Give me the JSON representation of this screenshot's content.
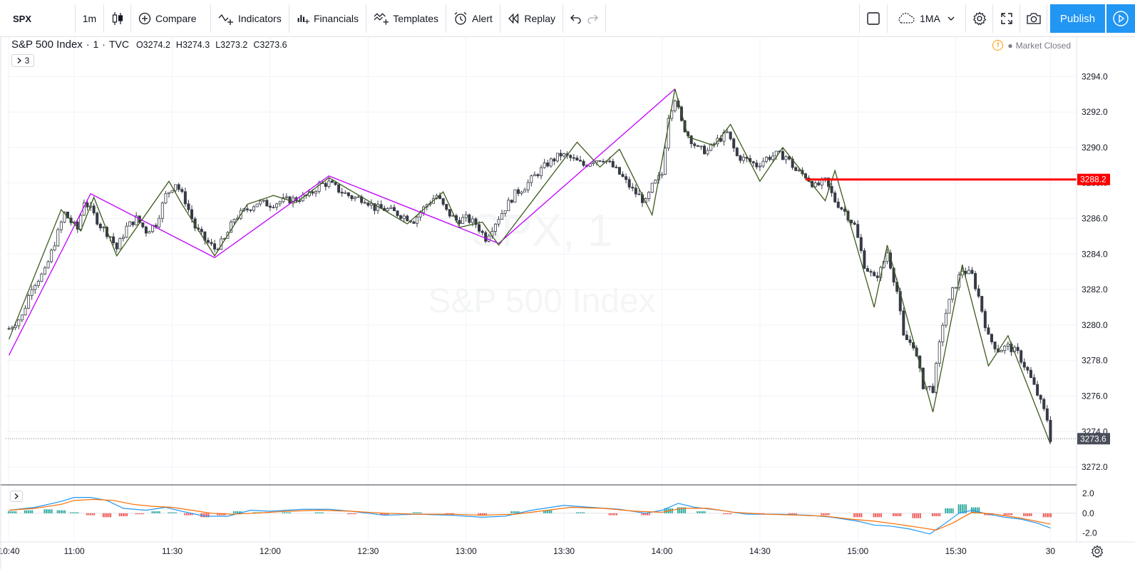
{
  "toolbar": {
    "symbol": "SPX",
    "interval": "1m",
    "compare_label": "Compare",
    "indicators_label": "Indicators",
    "financials_label": "Financials",
    "templates_label": "Templates",
    "alert_label": "Alert",
    "replay_label": "Replay",
    "ma_label": "1MA",
    "publish_label": "Publish"
  },
  "legend": {
    "name": "S&P 500 Index",
    "interval": "1",
    "exchange": "TVC",
    "separator": "·",
    "open": "O3274.2",
    "high": "H3274.3",
    "low": "L3273.2",
    "close": "C3273.6",
    "collapsed_count": "3"
  },
  "status": {
    "market": "Market Closed"
  },
  "watermark": {
    "symbol": "SPX, 1",
    "name": "S&P 500 Index"
  },
  "colors": {
    "candle_up": "#ffffff",
    "candle_down": "#363a45",
    "zigzag_major": "#c300ff",
    "zigzag_minor": "#3d5a1e",
    "level_line": "#ff0000",
    "accent": "#2196f3",
    "macd_line": "#2196f3",
    "signal_line": "#ff6d00",
    "hist_up": "#26a69a",
    "hist_down": "#ef5350"
  },
  "chart_data": [
    {
      "type": "candlestick",
      "title": "S&P 500 Index · 1 · TVC",
      "x_ticks": [
        "10:40",
        "11:00",
        "11:30",
        "12:00",
        "12:30",
        "13:00",
        "13:30",
        "14:00",
        "14:30",
        "15:00",
        "15:30",
        "30"
      ],
      "y_ticks": [
        3272.0,
        3274.0,
        3276.0,
        3278.0,
        3280.0,
        3282.0,
        3284.0,
        3286.0,
        3288.0,
        3290.0,
        3292.0,
        3294.0
      ],
      "ylim": [
        3271.0,
        3296.3
      ],
      "x_range": [
        "10:40",
        "15:59"
      ],
      "last_price": "3273.6",
      "level_price": "3288.2",
      "level_start": "14:44",
      "grid": true,
      "close_path": [
        [
          "10:40",
          3279.8
        ],
        [
          "10:44",
          3280.5
        ],
        [
          "10:47",
          3282.2
        ],
        [
          "10:51",
          3283.0
        ],
        [
          "10:55",
          3285.2
        ],
        [
          "10:57",
          3286.3
        ],
        [
          "10:59",
          3285.8
        ],
        [
          "11:01",
          3285.4
        ],
        [
          "11:03",
          3287.0
        ],
        [
          "11:05",
          3286.5
        ],
        [
          "11:08",
          3285.6
        ],
        [
          "11:11",
          3285.0
        ],
        [
          "11:13",
          3284.3
        ],
        [
          "11:16",
          3285.5
        ],
        [
          "11:19",
          3286.0
        ],
        [
          "11:22",
          3285.3
        ],
        [
          "11:25",
          3285.7
        ],
        [
          "11:28",
          3287.3
        ],
        [
          "11:31",
          3288.0
        ],
        [
          "11:34",
          3287.0
        ],
        [
          "11:37",
          3285.5
        ],
        [
          "11:40",
          3284.8
        ],
        [
          "11:43",
          3284.3
        ],
        [
          "11:46",
          3284.8
        ],
        [
          "11:49",
          3286.0
        ],
        [
          "11:52",
          3286.4
        ],
        [
          "11:56",
          3286.9
        ],
        [
          "12:00",
          3286.8
        ],
        [
          "12:04",
          3287.0
        ],
        [
          "12:08",
          3287.1
        ],
        [
          "12:12",
          3287.3
        ],
        [
          "12:15",
          3287.9
        ],
        [
          "12:18",
          3288.0
        ],
        [
          "12:21",
          3287.6
        ],
        [
          "12:25",
          3287.2
        ],
        [
          "12:29",
          3287.1
        ],
        [
          "12:32",
          3286.6
        ],
        [
          "12:36",
          3286.5
        ],
        [
          "12:40",
          3286.2
        ],
        [
          "12:44",
          3285.9
        ],
        [
          "12:48",
          3286.8
        ],
        [
          "12:51",
          3287.3
        ],
        [
          "12:54",
          3286.4
        ],
        [
          "12:57",
          3285.9
        ],
        [
          "13:00",
          3286.0
        ],
        [
          "13:03",
          3285.7
        ],
        [
          "13:06",
          3284.9
        ],
        [
          "13:09",
          3285.8
        ],
        [
          "13:12",
          3286.6
        ],
        [
          "13:15",
          3287.4
        ],
        [
          "13:18",
          3287.8
        ],
        [
          "13:21",
          3288.4
        ],
        [
          "13:25",
          3289.1
        ],
        [
          "13:29",
          3289.6
        ],
        [
          "13:32",
          3289.4
        ],
        [
          "13:36",
          3289.0
        ],
        [
          "13:39",
          3289.3
        ],
        [
          "13:42",
          3289.4
        ],
        [
          "13:45",
          3288.9
        ],
        [
          "13:48",
          3288.3
        ],
        [
          "13:51",
          3287.6
        ],
        [
          "13:55",
          3286.9
        ],
        [
          "13:57",
          3287.8
        ],
        [
          "14:00",
          3288.5
        ],
        [
          "14:02",
          3291.8
        ],
        [
          "14:04",
          3292.8
        ],
        [
          "14:06",
          3291.4
        ],
        [
          "14:08",
          3290.7
        ],
        [
          "14:11",
          3289.9
        ],
        [
          "14:14",
          3289.8
        ],
        [
          "14:17",
          3290.4
        ],
        [
          "14:20",
          3290.8
        ],
        [
          "14:23",
          3289.5
        ],
        [
          "14:26",
          3289.3
        ],
        [
          "14:29",
          3289.0
        ],
        [
          "14:32",
          3289.4
        ],
        [
          "14:35",
          3289.6
        ],
        [
          "14:38",
          3289.5
        ],
        [
          "14:41",
          3288.7
        ],
        [
          "14:44",
          3288.4
        ],
        [
          "14:47",
          3287.8
        ],
        [
          "14:50",
          3288.1
        ],
        [
          "14:53",
          3287.0
        ],
        [
          "14:56",
          3286.4
        ],
        [
          "14:59",
          3285.6
        ],
        [
          "15:02",
          3283.4
        ],
        [
          "15:05",
          3282.6
        ],
        [
          "15:07",
          3283.1
        ],
        [
          "15:09",
          3284.1
        ],
        [
          "15:12",
          3281.9
        ],
        [
          "15:14",
          3279.3
        ],
        [
          "15:17",
          3278.9
        ],
        [
          "15:20",
          3276.6
        ],
        [
          "15:23",
          3276.4
        ],
        [
          "15:26",
          3280.1
        ],
        [
          "15:29",
          3281.9
        ],
        [
          "15:32",
          3283.1
        ],
        [
          "15:35",
          3282.8
        ],
        [
          "15:37",
          3281.6
        ],
        [
          "15:40",
          3279.3
        ],
        [
          "15:43",
          3278.6
        ],
        [
          "15:46",
          3278.8
        ],
        [
          "15:49",
          3278.4
        ],
        [
          "15:52",
          3277.4
        ],
        [
          "15:55",
          3276.1
        ],
        [
          "15:58",
          3274.7
        ],
        [
          "15:59",
          3273.6
        ]
      ],
      "zigzag_major": [
        [
          "10:40",
          3278.3
        ],
        [
          "11:05",
          3287.4
        ],
        [
          "11:43",
          3283.8
        ],
        [
          "12:18",
          3288.4
        ],
        [
          "13:10",
          3284.6
        ],
        [
          "14:04",
          3293.3
        ]
      ],
      "zigzag_minor": [
        [
          "10:40",
          3279.2
        ],
        [
          "10:56",
          3286.5
        ],
        [
          "11:02",
          3285.3
        ],
        [
          "11:06",
          3287.2
        ],
        [
          "11:13",
          3283.9
        ],
        [
          "11:29",
          3288.1
        ],
        [
          "11:33",
          3286.8
        ],
        [
          "11:43",
          3283.9
        ],
        [
          "11:53",
          3286.8
        ],
        [
          "12:01",
          3287.3
        ],
        [
          "12:08",
          3286.9
        ],
        [
          "12:18",
          3288.3
        ],
        [
          "12:42",
          3285.7
        ],
        [
          "12:53",
          3287.5
        ],
        [
          "12:58",
          3285.5
        ],
        [
          "13:05",
          3285.8
        ],
        [
          "13:10",
          3284.5
        ],
        [
          "13:34",
          3290.3
        ],
        [
          "13:41",
          3288.9
        ],
        [
          "13:47",
          3289.9
        ],
        [
          "13:57",
          3286.2
        ],
        [
          "14:04",
          3293.3
        ],
        [
          "14:08",
          3290.6
        ],
        [
          "14:16",
          3290.1
        ],
        [
          "14:21",
          3291.3
        ],
        [
          "14:30",
          3288.1
        ],
        [
          "14:37",
          3290.0
        ],
        [
          "14:50",
          3287.0
        ],
        [
          "14:53",
          3288.7
        ],
        [
          "15:05",
          3281.0
        ],
        [
          "15:09",
          3284.5
        ],
        [
          "15:23",
          3275.1
        ],
        [
          "15:32",
          3283.4
        ],
        [
          "15:40",
          3277.7
        ],
        [
          "15:46",
          3279.4
        ],
        [
          "15:59",
          3273.3
        ]
      ]
    },
    {
      "type": "line",
      "title": "",
      "y_ticks": [
        2.0,
        0.0,
        -2.0
      ],
      "ylim": [
        -2.9,
        2.8
      ],
      "series": [
        {
          "values": [
            [
              "10:40",
              0.3
            ],
            [
              "10:48",
              0.6
            ],
            [
              "10:56",
              1.2
            ],
            [
              "11:00",
              1.6
            ],
            [
              "11:05",
              1.6
            ],
            [
              "11:10",
              1.3
            ],
            [
              "11:15",
              0.5
            ],
            [
              "11:22",
              0.3
            ],
            [
              "11:28",
              0.6
            ],
            [
              "11:33",
              0.2
            ],
            [
              "11:40",
              -0.3
            ],
            [
              "11:47",
              -0.3
            ],
            [
              "11:54",
              0.3
            ],
            [
              "12:00",
              0.2
            ],
            [
              "12:10",
              0.4
            ],
            [
              "12:18",
              0.4
            ],
            [
              "12:25",
              0.2
            ],
            [
              "12:35",
              -0.2
            ],
            [
              "12:45",
              -0.1
            ],
            [
              "12:55",
              -0.2
            ],
            [
              "13:05",
              -0.4
            ],
            [
              "13:12",
              -0.3
            ],
            [
              "13:20",
              0.3
            ],
            [
              "13:30",
              0.8
            ],
            [
              "13:38",
              0.6
            ],
            [
              "13:47",
              0.4
            ],
            [
              "13:55",
              0.0
            ],
            [
              "14:00",
              0.3
            ],
            [
              "14:05",
              1.0
            ],
            [
              "14:10",
              0.6
            ],
            [
              "14:18",
              0.3
            ],
            [
              "14:26",
              -0.1
            ],
            [
              "14:36",
              -0.1
            ],
            [
              "14:45",
              -0.2
            ],
            [
              "14:52",
              -0.4
            ],
            [
              "15:00",
              -0.8
            ],
            [
              "15:05",
              -1.2
            ],
            [
              "15:10",
              -1.3
            ],
            [
              "15:16",
              -1.6
            ],
            [
              "15:22",
              -2.1
            ],
            [
              "15:26",
              -1.2
            ],
            [
              "15:31",
              0.0
            ],
            [
              "15:35",
              0.3
            ],
            [
              "15:40",
              -0.1
            ],
            [
              "15:45",
              -0.4
            ],
            [
              "15:50",
              -0.6
            ],
            [
              "15:55",
              -1.0
            ],
            [
              "15:59",
              -1.5
            ]
          ]
        },
        {
          "values": [
            [
              "10:40",
              0.3
            ],
            [
              "10:48",
              0.5
            ],
            [
              "10:56",
              0.9
            ],
            [
              "11:00",
              1.3
            ],
            [
              "11:06",
              1.4
            ],
            [
              "11:12",
              1.3
            ],
            [
              "11:18",
              0.9
            ],
            [
              "11:24",
              0.7
            ],
            [
              "11:30",
              0.6
            ],
            [
              "11:36",
              0.3
            ],
            [
              "11:42",
              0.0
            ],
            [
              "11:48",
              -0.1
            ],
            [
              "11:55",
              0.0
            ],
            [
              "12:05",
              0.2
            ],
            [
              "12:15",
              0.3
            ],
            [
              "12:25",
              0.2
            ],
            [
              "12:35",
              0.0
            ],
            [
              "12:45",
              -0.1
            ],
            [
              "12:55",
              -0.1
            ],
            [
              "13:05",
              -0.2
            ],
            [
              "13:15",
              -0.1
            ],
            [
              "13:25",
              0.3
            ],
            [
              "13:32",
              0.6
            ],
            [
              "13:42",
              0.5
            ],
            [
              "13:52",
              0.2
            ],
            [
              "14:00",
              0.1
            ],
            [
              "14:06",
              0.5
            ],
            [
              "14:14",
              0.5
            ],
            [
              "14:22",
              0.1
            ],
            [
              "14:32",
              -0.1
            ],
            [
              "14:42",
              -0.2
            ],
            [
              "14:50",
              -0.3
            ],
            [
              "14:58",
              -0.6
            ],
            [
              "15:05",
              -0.8
            ],
            [
              "15:12",
              -1.1
            ],
            [
              "15:18",
              -1.4
            ],
            [
              "15:24",
              -1.7
            ],
            [
              "15:29",
              -1.0
            ],
            [
              "15:35",
              0.1
            ],
            [
              "15:42",
              -0.1
            ],
            [
              "15:50",
              -0.5
            ],
            [
              "15:59",
              -1.1
            ]
          ]
        }
      ],
      "histogram": [
        [
          "10:41",
          0.2
        ],
        [
          "10:46",
          0.3
        ],
        [
          "10:52",
          0.4
        ],
        [
          "10:56",
          0.3
        ],
        [
          "11:00",
          0.1
        ],
        [
          "11:05",
          -0.2
        ],
        [
          "11:10",
          -0.4
        ],
        [
          "11:15",
          -0.3
        ],
        [
          "11:20",
          -0.1
        ],
        [
          "11:25",
          0.2
        ],
        [
          "11:30",
          0.1
        ],
        [
          "11:35",
          -0.2
        ],
        [
          "11:40",
          -0.4
        ],
        [
          "11:45",
          -0.2
        ],
        [
          "11:50",
          0.2
        ],
        [
          "11:56",
          0.1
        ],
        [
          "12:05",
          0.1
        ],
        [
          "12:15",
          0.1
        ],
        [
          "12:25",
          -0.1
        ],
        [
          "12:35",
          -0.2
        ],
        [
          "12:45",
          0.1
        ],
        [
          "12:55",
          -0.1
        ],
        [
          "13:05",
          -0.2
        ],
        [
          "13:15",
          0.2
        ],
        [
          "13:25",
          0.3
        ],
        [
          "13:35",
          0.1
        ],
        [
          "13:45",
          -0.2
        ],
        [
          "13:55",
          -0.2
        ],
        [
          "14:02",
          0.5
        ],
        [
          "14:06",
          0.6
        ],
        [
          "14:12",
          0.2
        ],
        [
          "14:20",
          -0.1
        ],
        [
          "14:30",
          -0.1
        ],
        [
          "14:40",
          -0.1
        ],
        [
          "14:50",
          -0.2
        ],
        [
          "15:00",
          -0.4
        ],
        [
          "15:06",
          -0.4
        ],
        [
          "15:12",
          -0.3
        ],
        [
          "15:18",
          -0.5
        ],
        [
          "15:24",
          -0.3
        ],
        [
          "15:28",
          0.5
        ],
        [
          "15:32",
          0.9
        ],
        [
          "15:36",
          0.6
        ],
        [
          "15:40",
          -0.2
        ],
        [
          "15:46",
          -0.2
        ],
        [
          "15:52",
          -0.3
        ],
        [
          "15:58",
          -0.4
        ]
      ]
    }
  ]
}
